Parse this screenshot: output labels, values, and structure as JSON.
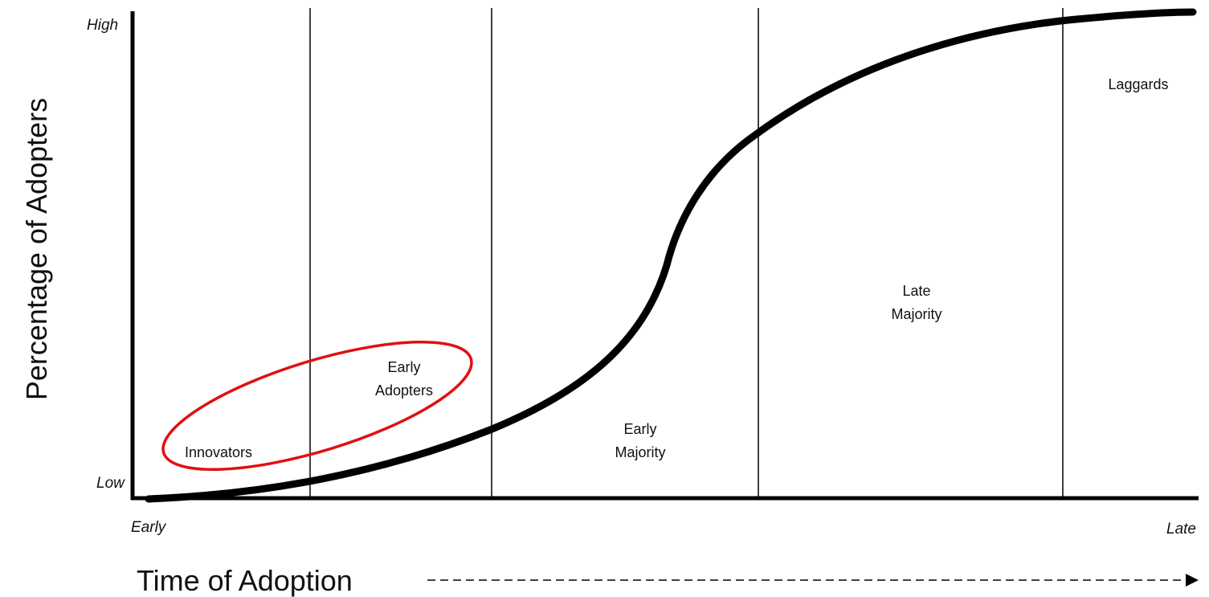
{
  "axes": {
    "y_label": "Percentage of Adopters",
    "x_label": "Time of Adoption",
    "y_high": "High",
    "y_low": "Low",
    "x_early": "Early",
    "x_late": "Late"
  },
  "segments": [
    {
      "lines": [
        "Innovators"
      ]
    },
    {
      "lines": [
        "Early",
        "Adopters"
      ]
    },
    {
      "lines": [
        "Early",
        "Majority"
      ]
    },
    {
      "lines": [
        "Late",
        "Majority"
      ]
    },
    {
      "lines": [
        "Laggards"
      ]
    }
  ]
}
